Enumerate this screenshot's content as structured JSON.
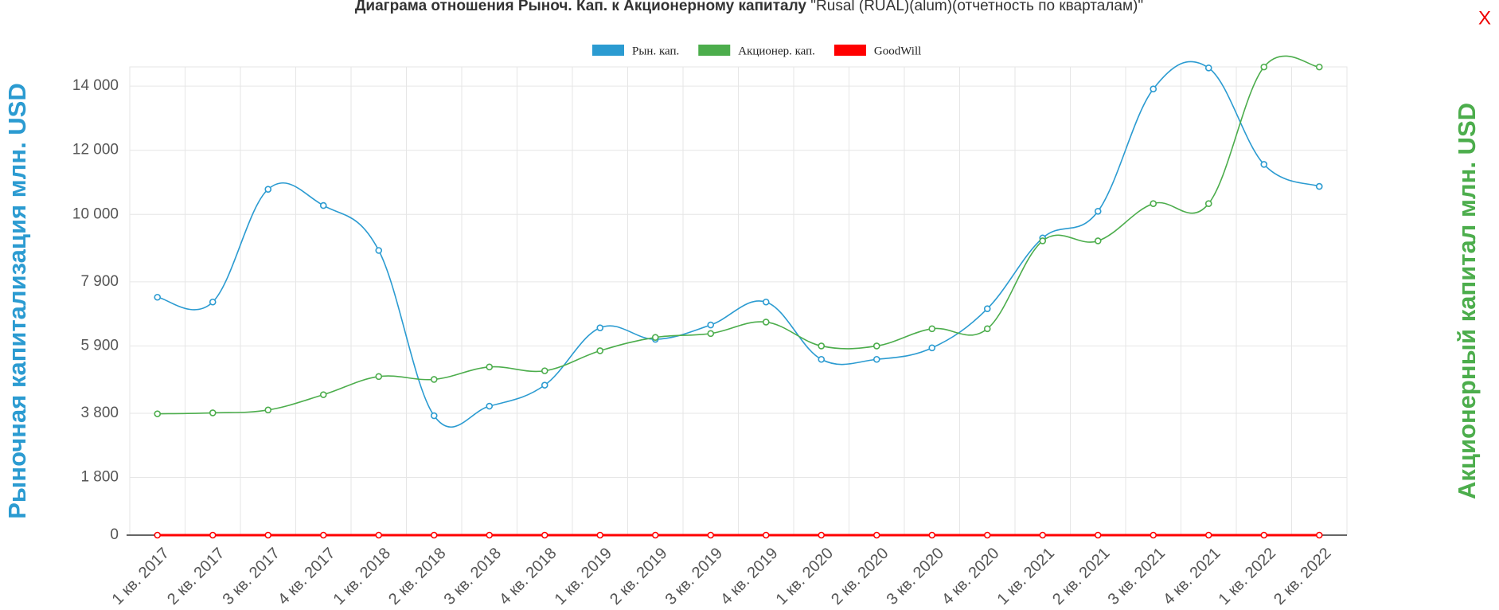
{
  "chart_data": {
    "type": "line",
    "title": "Диаграма отношения Рыноч. Кап. к Акционерному капиталу",
    "title_suffix": "\"Rusal (RUAL)(alum)(отчетность по кварталам)\"",
    "y_label": "Рыночная капитализация млн. USD",
    "y2_label": "Акционерный капитал млн. USD",
    "close_label": "X",
    "categories": [
      "1 кв. 2017",
      "2 кв. 2017",
      "3 кв. 2017",
      "4 кв. 2017",
      "1 кв. 2018",
      "2 кв. 2018",
      "3 кв. 2018",
      "4 кв. 2018",
      "1 кв. 2019",
      "2 кв. 2019",
      "3 кв. 2019",
      "4 кв. 2019",
      "1 кв. 2020",
      "2 кв. 2020",
      "3 кв. 2020",
      "4 кв. 2020",
      "1 кв. 2021",
      "2 кв. 2021",
      "3 кв. 2021",
      "4 кв. 2021",
      "1 кв. 2022",
      "2 кв. 2022"
    ],
    "series": [
      {
        "name": "Рын. кап.",
        "color": "#2b9bd1",
        "values": [
          7418,
          7269,
          10784,
          10278,
          8877,
          3724,
          4022,
          4677,
          6464,
          6107,
          6554,
          7269,
          5481,
          5481,
          5839,
          7060,
          9265,
          10099,
          13912,
          14567,
          11559,
          10873
        ]
      },
      {
        "name": "Акционер. кап.",
        "color": "#4cad4c",
        "values": [
          3783,
          3813,
          3902,
          4379,
          4945,
          4856,
          5243,
          5124,
          5749,
          6166,
          6286,
          6643,
          5898,
          5898,
          6435,
          6435,
          9175,
          9175,
          10337,
          10337,
          14597,
          14597
        ]
      },
      {
        "name": "GoodWill",
        "color": "#ff0000",
        "values": [
          0,
          0,
          0,
          0,
          0,
          0,
          0,
          0,
          0,
          0,
          0,
          0,
          0,
          0,
          0,
          0,
          0,
          0,
          0,
          0,
          0,
          0
        ]
      }
    ],
    "ylim": [
      0,
      14600
    ],
    "yticks": [
      0,
      {
        "value": 1800,
        "label": "1 800"
      },
      {
        "value": 3800,
        "label": "3 800"
      },
      {
        "value": 5900,
        "label": "5 900"
      },
      {
        "value": 7900,
        "label": "7 900"
      },
      {
        "value": 10000,
        "label": "10 000"
      },
      {
        "value": 12000,
        "label": "12 000"
      },
      {
        "value": 14000,
        "label": "14 000"
      }
    ],
    "grid": true,
    "legend": "top"
  }
}
